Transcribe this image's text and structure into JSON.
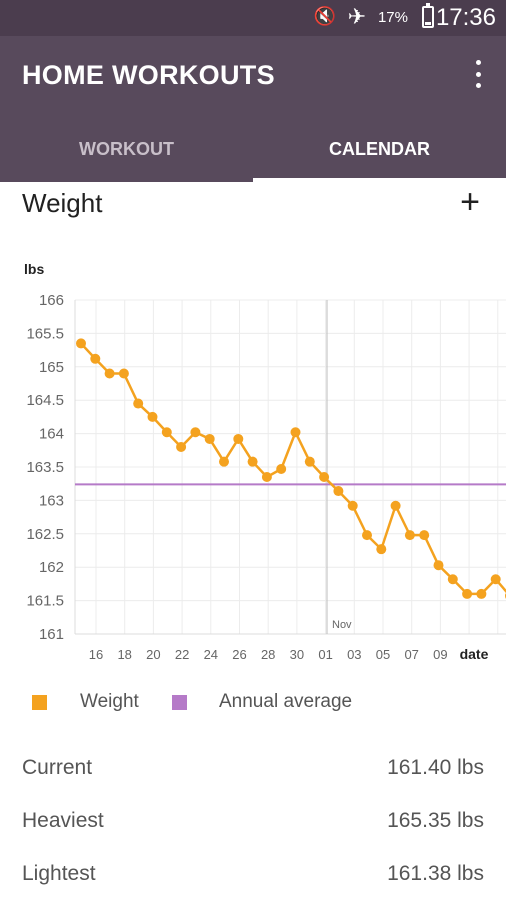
{
  "status_bar": {
    "battery": "17%",
    "time": "17:36"
  },
  "app_bar": {
    "title": "HOME WORKOUTS"
  },
  "tabs": [
    {
      "label": "WORKOUT",
      "active": false
    },
    {
      "label": "CALENDAR",
      "active": true
    }
  ],
  "section": {
    "title": "Weight",
    "add_label": "+"
  },
  "chart_data": {
    "type": "line",
    "ylabel": "lbs",
    "xlabel": "date",
    "ylim": [
      161,
      166
    ],
    "y_ticks": [
      "166",
      "165.5",
      "165",
      "164.5",
      "164",
      "163.5",
      "163",
      "162.5",
      "162",
      "161.5",
      "161"
    ],
    "x_tick_labels": [
      "16",
      "18",
      "20",
      "22",
      "24",
      "26",
      "28",
      "30",
      "01",
      "03",
      "05",
      "07",
      "09"
    ],
    "month_marker": "Nov",
    "grid": true,
    "series": [
      {
        "name": "Weight",
        "color": "#f4a21f",
        "values": [
          165.35,
          165.12,
          164.9,
          164.9,
          164.45,
          164.25,
          164.02,
          163.8,
          164.02,
          163.92,
          163.58,
          163.92,
          163.58,
          163.35,
          163.47,
          164.02,
          163.58,
          163.35,
          163.14,
          162.92,
          162.48,
          162.27,
          162.92,
          162.48,
          162.48,
          162.03,
          161.82,
          161.6,
          161.6,
          161.82,
          161.57
        ]
      },
      {
        "name": "Annual average",
        "color": "#b57ac8",
        "values": [
          163.24
        ]
      }
    ]
  },
  "legend": [
    {
      "label": "Weight",
      "color": "#f4a21f"
    },
    {
      "label": "Annual average",
      "color": "#b57ac8"
    }
  ],
  "stats": [
    {
      "label": "Current",
      "value": "161.40 lbs"
    },
    {
      "label": "Heaviest",
      "value": "165.35 lbs"
    },
    {
      "label": "Lightest",
      "value": "161.38 lbs"
    }
  ]
}
